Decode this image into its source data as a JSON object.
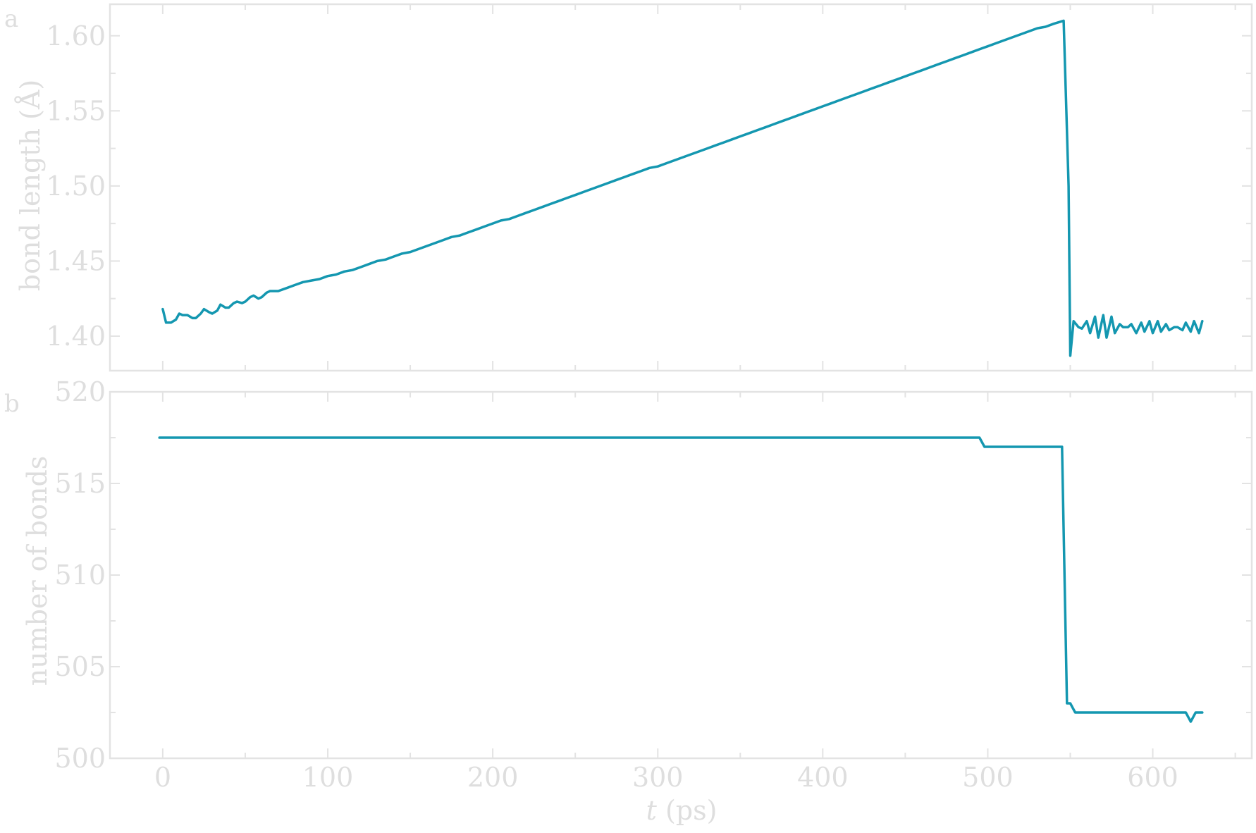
{
  "colors": {
    "series": "#1497b0"
  },
  "chart_data": [
    {
      "type": "line",
      "panel_label": "a",
      "xlabel_italic": "",
      "xlabel_rest": "",
      "ylabel": "bond length (Å)",
      "xlim": [
        -32,
        660
      ],
      "ylim": [
        1.377,
        1.621
      ],
      "xticks": [
        0,
        100,
        200,
        300,
        400,
        500,
        600
      ],
      "xticks_minor": [
        50,
        150,
        250,
        350,
        450,
        550,
        650
      ],
      "xtick_labels_visible": false,
      "yticks": [
        1.4,
        1.45,
        1.5,
        1.55,
        1.6
      ],
      "yticks_minor": [
        1.425,
        1.475,
        1.525,
        1.575
      ],
      "ytick_labels": [
        "1.40",
        "1.45",
        "1.50",
        "1.55",
        "1.60"
      ],
      "series": [
        {
          "x": [
            0,
            2,
            5,
            8,
            10,
            12,
            15,
            18,
            20,
            23,
            25,
            28,
            30,
            33,
            35,
            38,
            40,
            43,
            45,
            48,
            50,
            53,
            55,
            58,
            60,
            63,
            65,
            68,
            70,
            75,
            80,
            85,
            90,
            95,
            100,
            105,
            110,
            115,
            120,
            125,
            130,
            135,
            140,
            145,
            150,
            155,
            160,
            165,
            170,
            175,
            180,
            185,
            190,
            195,
            200,
            205,
            210,
            215,
            220,
            225,
            230,
            235,
            240,
            245,
            250,
            255,
            260,
            265,
            270,
            275,
            280,
            285,
            290,
            295,
            300,
            305,
            310,
            315,
            320,
            325,
            330,
            335,
            340,
            345,
            350,
            355,
            360,
            365,
            370,
            375,
            380,
            385,
            390,
            395,
            400,
            405,
            410,
            415,
            420,
            425,
            430,
            435,
            440,
            445,
            450,
            455,
            460,
            465,
            470,
            475,
            480,
            485,
            490,
            495,
            500,
            505,
            510,
            515,
            520,
            525,
            530,
            535,
            540,
            543,
            546,
            549,
            550,
            552,
            555,
            557,
            560,
            562,
            565,
            567,
            570,
            572,
            575,
            577,
            580,
            582,
            585,
            587,
            590,
            593,
            595,
            598,
            600,
            603,
            605,
            608,
            610,
            613,
            615,
            618,
            620,
            623,
            625,
            628,
            630
          ],
          "y": [
            1.418,
            1.409,
            1.409,
            1.411,
            1.415,
            1.414,
            1.414,
            1.412,
            1.412,
            1.415,
            1.418,
            1.416,
            1.415,
            1.417,
            1.421,
            1.419,
            1.419,
            1.422,
            1.423,
            1.422,
            1.423,
            1.426,
            1.427,
            1.425,
            1.426,
            1.429,
            1.43,
            1.43,
            1.43,
            1.432,
            1.434,
            1.436,
            1.437,
            1.438,
            1.44,
            1.441,
            1.443,
            1.444,
            1.446,
            1.448,
            1.45,
            1.451,
            1.453,
            1.455,
            1.456,
            1.458,
            1.46,
            1.462,
            1.464,
            1.466,
            1.467,
            1.469,
            1.471,
            1.473,
            1.475,
            1.477,
            1.478,
            1.48,
            1.482,
            1.484,
            1.486,
            1.488,
            1.49,
            1.492,
            1.494,
            1.496,
            1.498,
            1.5,
            1.502,
            1.504,
            1.506,
            1.508,
            1.51,
            1.512,
            1.513,
            1.515,
            1.517,
            1.519,
            1.521,
            1.523,
            1.525,
            1.527,
            1.529,
            1.531,
            1.533,
            1.535,
            1.537,
            1.539,
            1.541,
            1.543,
            1.545,
            1.547,
            1.549,
            1.551,
            1.553,
            1.555,
            1.557,
            1.559,
            1.561,
            1.563,
            1.565,
            1.567,
            1.569,
            1.571,
            1.573,
            1.575,
            1.577,
            1.579,
            1.581,
            1.583,
            1.585,
            1.587,
            1.589,
            1.591,
            1.593,
            1.595,
            1.597,
            1.599,
            1.601,
            1.603,
            1.605,
            1.606,
            1.608,
            1.609,
            1.61,
            1.5,
            1.387,
            1.41,
            1.406,
            1.405,
            1.41,
            1.402,
            1.413,
            1.399,
            1.414,
            1.399,
            1.413,
            1.402,
            1.408,
            1.406,
            1.406,
            1.408,
            1.402,
            1.409,
            1.403,
            1.41,
            1.402,
            1.41,
            1.403,
            1.408,
            1.404,
            1.406,
            1.406,
            1.404,
            1.409,
            1.403,
            1.41,
            1.402,
            1.41
          ]
        }
      ]
    },
    {
      "type": "line",
      "panel_label": "b",
      "xlabel_italic": "t",
      "xlabel_rest": " (ps)",
      "ylabel": "number of bonds",
      "xlim": [
        -32,
        660
      ],
      "ylim": [
        500,
        520
      ],
      "xticks": [
        0,
        100,
        200,
        300,
        400,
        500,
        600
      ],
      "xticks_minor": [
        50,
        150,
        250,
        350,
        450,
        550,
        650
      ],
      "xtick_labels_visible": true,
      "xtick_labels": [
        "0",
        "100",
        "200",
        "300",
        "400",
        "500",
        "600"
      ],
      "yticks": [
        500,
        505,
        510,
        515,
        520
      ],
      "yticks_minor": [
        502.5,
        507.5,
        512.5,
        517.5
      ],
      "ytick_labels": [
        "500",
        "505",
        "510",
        "515",
        "520"
      ],
      "series": [
        {
          "x": [
            -2,
            495,
            498,
            545,
            548,
            550,
            553,
            555,
            620,
            623,
            626,
            630
          ],
          "y": [
            517.5,
            517.5,
            517.0,
            517.0,
            503.0,
            503.0,
            502.5,
            502.5,
            502.5,
            502.0,
            502.5,
            502.5
          ]
        }
      ]
    }
  ]
}
